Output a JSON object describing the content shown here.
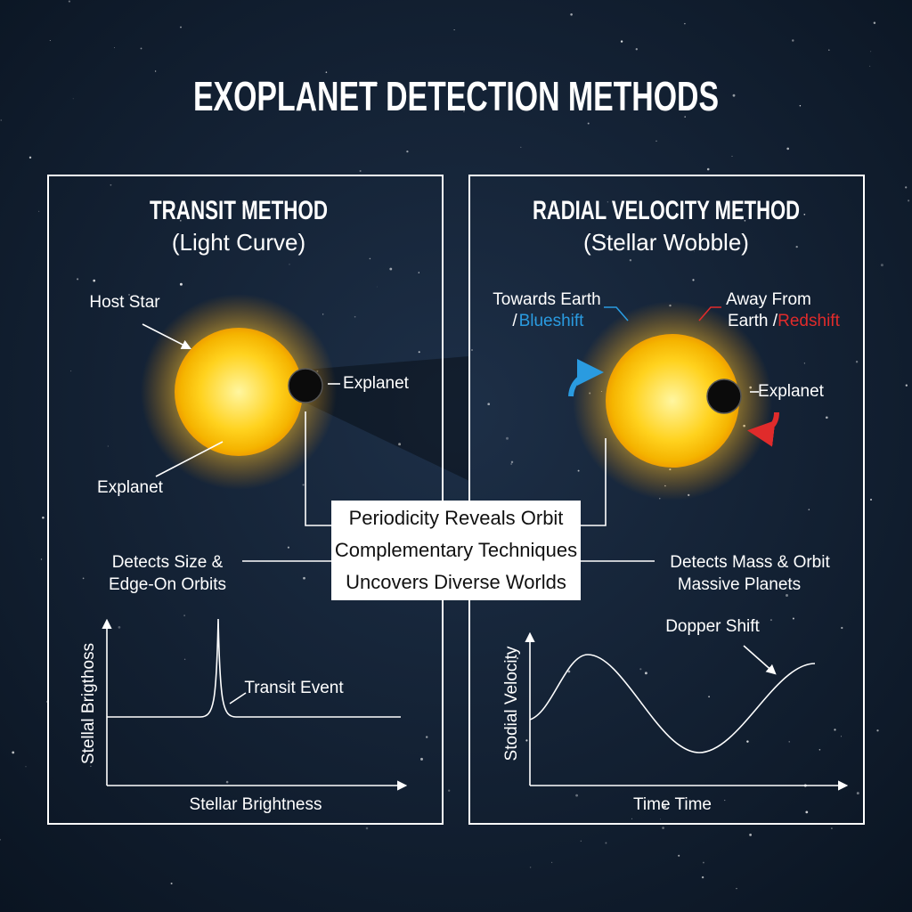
{
  "title": "EXOPLANET DETECTION METHODS",
  "panels": [
    {
      "title": "TRANSIT METHOD",
      "subtitle": "(Light Curve)",
      "star_label": "Host Star",
      "planet_label": "Explanet",
      "lower_label": "Explanet",
      "note": [
        "Detects Size &",
        "Edge-On Orbits"
      ],
      "graph": {
        "y_label": "Stellal Brigthoss",
        "x_label": "Stellar Brightness",
        "annotation": "Transit Event"
      }
    },
    {
      "title": "RADIAL VELOCITY METHOD",
      "subtitle": "(Stellar Wobble)",
      "towards": [
        "Towards Earth",
        "/",
        "Blueshift"
      ],
      "away": [
        "Away From",
        "Earth /",
        "Redshift"
      ],
      "planet_label": "Explanet",
      "note": [
        "Detects Mass & Orbit",
        "Massive Planets"
      ],
      "graph": {
        "y_label": "Stodial Velocity",
        "x_label": "Time Time",
        "annotation": "Dopper Shift"
      }
    }
  ],
  "center_box": {
    "lines": [
      "Periodicity Reveals Orbit",
      "Complementary Techniques",
      "Uncovers Diverse Worlds"
    ]
  }
}
